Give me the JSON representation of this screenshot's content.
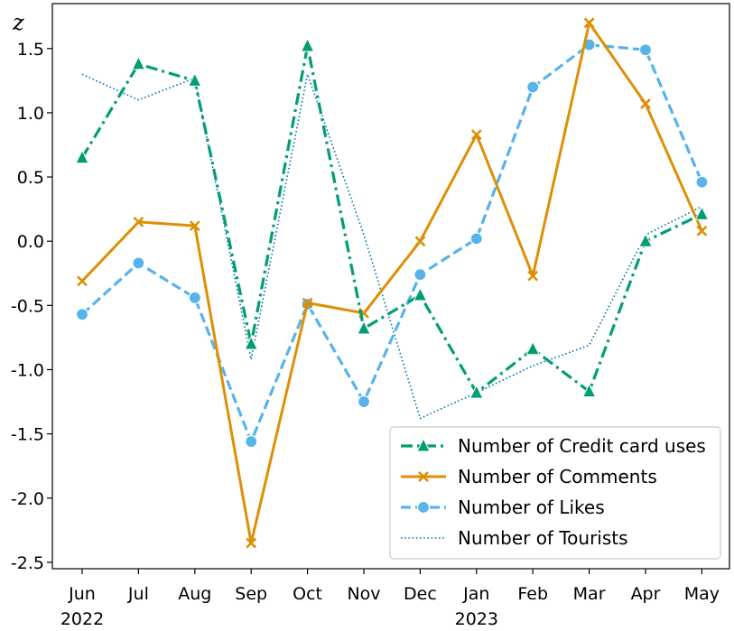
{
  "chart_data": {
    "type": "line",
    "title": "",
    "ylabel": "z",
    "xlabel": "",
    "categories": [
      "Jun",
      "Jul",
      "Aug",
      "Sep",
      "Oct",
      "Nov",
      "Dec",
      "Jan",
      "Feb",
      "Mar",
      "Apr",
      "May"
    ],
    "year_labels": [
      {
        "index": 0,
        "label": "2022"
      },
      {
        "index": 7,
        "label": "2023"
      }
    ],
    "ylim": [
      -2.55,
      1.85
    ],
    "yticks": [
      1.5,
      1.0,
      0.5,
      0.0,
      -0.5,
      -1.0,
      -1.5,
      -2.0,
      -2.5
    ],
    "ytick_labels": [
      "1.5",
      "1.0",
      "0.5",
      "0.0",
      "-0.5",
      "-1.0",
      "-1.5",
      "-2.0",
      "-2.5"
    ],
    "grid": false,
    "legend_position": "lower-right",
    "series": [
      {
        "name": "Number of Credit card uses",
        "color": "#029e73",
        "style": "dashdot",
        "marker": "triangle",
        "values": [
          0.65,
          1.38,
          1.25,
          -0.8,
          1.52,
          -0.68,
          -0.42,
          -1.18,
          -0.84,
          -1.17,
          0.0,
          0.21
        ]
      },
      {
        "name": "Number of Comments",
        "color": "#de8f05",
        "style": "solid",
        "marker": "x",
        "values": [
          -0.31,
          0.15,
          0.12,
          -2.35,
          -0.48,
          -0.56,
          0.0,
          0.83,
          -0.27,
          1.7,
          1.07,
          0.08
        ]
      },
      {
        "name": "Number of Likes",
        "color": "#56b4e9",
        "style": "dashed",
        "marker": "circle",
        "values": [
          -0.57,
          -0.17,
          -0.44,
          -1.56,
          -0.49,
          -1.25,
          -0.26,
          0.02,
          1.2,
          1.53,
          1.49,
          0.46
        ]
      },
      {
        "name": "Number of Tourists",
        "color": "#0173b2",
        "style": "dotted",
        "marker": "none",
        "values": [
          1.3,
          1.1,
          1.27,
          -0.92,
          1.3,
          0.05,
          -1.38,
          -1.18,
          -0.97,
          -0.81,
          0.05,
          0.27
        ]
      }
    ]
  }
}
